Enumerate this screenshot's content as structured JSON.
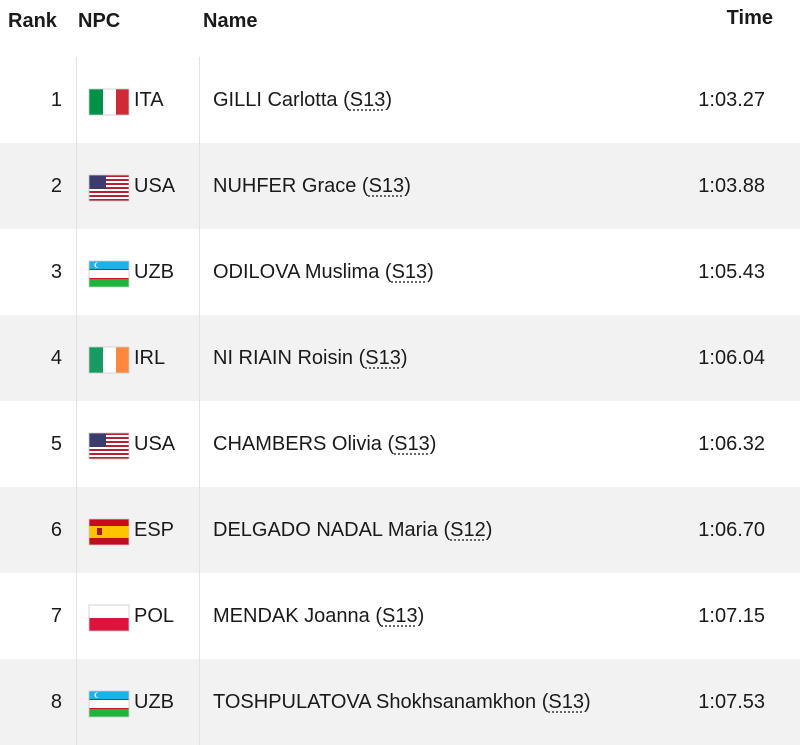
{
  "header": {
    "rank": "Rank",
    "npc": "NPC",
    "name": "Name",
    "time": "Time"
  },
  "class_brackets": [
    "(",
    ")"
  ],
  "rows": [
    {
      "rank": 1,
      "npc": "ITA",
      "name": "GILLI Carlotta",
      "class": "S13",
      "time": "1:03.27"
    },
    {
      "rank": 2,
      "npc": "USA",
      "name": "NUHFER Grace",
      "class": "S13",
      "time": "1:03.88"
    },
    {
      "rank": 3,
      "npc": "UZB",
      "name": "ODILOVA Muslima",
      "class": "S13",
      "time": "1:05.43"
    },
    {
      "rank": 4,
      "npc": "IRL",
      "name": "NI RIAIN Roisin",
      "class": "S13",
      "time": "1:06.04"
    },
    {
      "rank": 5,
      "npc": "USA",
      "name": "CHAMBERS Olivia",
      "class": "S13",
      "time": "1:06.32"
    },
    {
      "rank": 6,
      "npc": "ESP",
      "name": "DELGADO NADAL Maria",
      "class": "S12",
      "time": "1:06.70"
    },
    {
      "rank": 7,
      "npc": "POL",
      "name": "MENDAK Joanna",
      "class": "S13",
      "time": "1:07.15"
    },
    {
      "rank": 8,
      "npc": "UZB",
      "name": "TOSHPULATOVA Shokhsanamkhon",
      "class": "S13",
      "time": "1:07.53"
    }
  ]
}
